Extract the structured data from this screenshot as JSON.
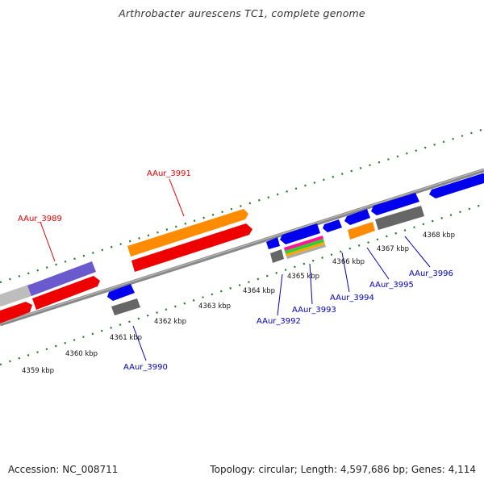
{
  "title": "Arthrobacter aurescens TC1, complete genome",
  "footer": {
    "accession": "Accession: NC_008711",
    "summary": "Topology: circular; Length: 4,597,686 bp; Genes: 4,114"
  },
  "colors": {
    "backbone": "#888888",
    "tick": "#1a7a1a",
    "forward_label": "#dd0000",
    "reverse_label": "#0000bb",
    "blue_gene": "#0000ee",
    "red_gene": "#ee0000",
    "orange_gene": "#ff8c00",
    "purple_gene": "#6a5acd",
    "gray_gene": "#777777"
  },
  "scale_ticks": [
    "4359 kbp",
    "4360 kbp",
    "4361 kbp",
    "4362 kbp",
    "4363 kbp",
    "4364 kbp",
    "4365 kbp",
    "4366 kbp",
    "4367 kbp",
    "4368 kbp"
  ],
  "gene_labels": {
    "g3989": "AAur_3989",
    "g3990": "AAur_3990",
    "g3991": "AAur_3991",
    "g3992": "AAur_3992",
    "g3993": "AAur_3993",
    "g3994": "AAur_3994",
    "g3995": "AAur_3995",
    "g3996": "AAur_3996"
  }
}
